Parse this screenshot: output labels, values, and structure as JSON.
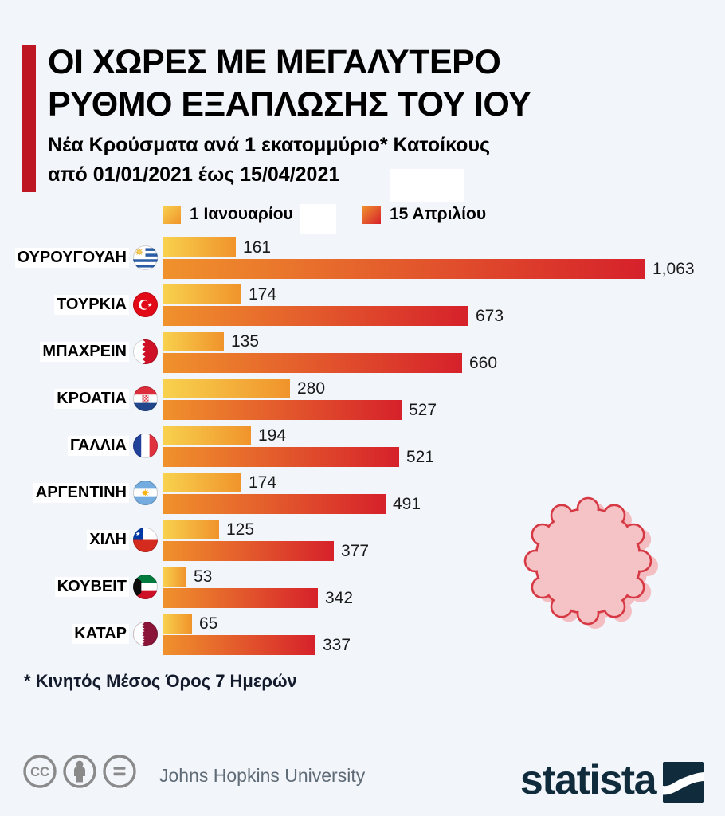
{
  "title": {
    "line1": "ΟΙ ΧΩΡΕΣ ΜΕ ΜΕΓΑΛΥΤΕΡΟ",
    "line2": "ΡΥΘΜΟ ΕΞΑΠΛΩΣΗΣ ΤΟΥ ΙΟΥ"
  },
  "subtitle": {
    "line1": "Νέα Κρούσματα ανά 1 εκατομμύριο* Κατοίκους",
    "line2": "από 01/01/2021 έως 15/04/2021"
  },
  "legend": [
    {
      "label": "1 Ιανουαρίου"
    },
    {
      "label": "15 Απριλίου"
    }
  ],
  "chart_data": {
    "type": "bar",
    "orientation": "horizontal",
    "series_names": [
      "1 Ιανουαρίου",
      "15 Απριλίου"
    ],
    "xlim": [
      0,
      1063
    ],
    "grid": false,
    "legend_position": "top",
    "countries": [
      {
        "name": "ΟΥΡΟΥΓΟΥΑΗ",
        "flag": "uruguay",
        "jan": 161,
        "apr": 1063
      },
      {
        "name": "ΤΟΥΡΚΙΑ",
        "flag": "turkey",
        "jan": 174,
        "apr": 673
      },
      {
        "name": "ΜΠΑΧΡΕΙΝ",
        "flag": "bahrain",
        "jan": 135,
        "apr": 660
      },
      {
        "name": "ΚΡΟΑΤΙΑ",
        "flag": "croatia",
        "jan": 280,
        "apr": 527
      },
      {
        "name": "ΓΑΛΛΙΑ",
        "flag": "france",
        "jan": 194,
        "apr": 521
      },
      {
        "name": "ΑΡΓΕΝΤΙΝΗ",
        "flag": "argentina",
        "jan": 174,
        "apr": 491
      },
      {
        "name": "ΧΙΛΗ",
        "flag": "chile",
        "jan": 125,
        "apr": 377
      },
      {
        "name": "ΚΟΥΒΕΙΤ",
        "flag": "kuwait",
        "jan": 53,
        "apr": 342
      },
      {
        "name": "ΚΑΤΑΡ",
        "flag": "qatar",
        "jan": 65,
        "apr": 337
      }
    ]
  },
  "footnote": "* Κινητός Μέσος Όρος 7 Ημερών",
  "footer": {
    "source": "Johns Hopkins University",
    "brand": "statista",
    "license_icons": [
      "cc-icon",
      "attribution-icon",
      "equal-license-icon"
    ]
  },
  "colors": {
    "background": "#F2F5FA",
    "accent_red": "#BE1622",
    "bar_jan_start": "#F8D24E",
    "bar_jan_end": "#F0932B",
    "bar_apr_start": "#F0922C",
    "bar_apr_end": "#D6212B",
    "virus_fill": "#F5C3C6",
    "virus_stroke": "#D63943",
    "virus_shadow": "#F3BDC1",
    "brand_navy": "#0F2B3C",
    "footer_gray": "#8A8A8A"
  }
}
